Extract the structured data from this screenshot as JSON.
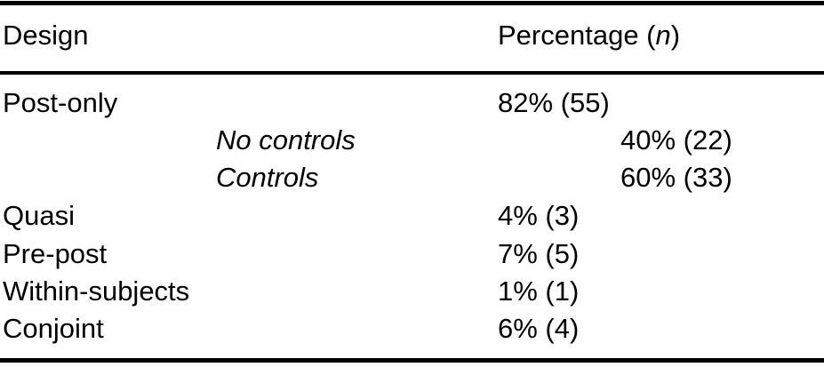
{
  "page": {
    "background_color": "#ffffff",
    "text_color": "#000000"
  },
  "table": {
    "header": {
      "design_label": "Design",
      "percentage_prefix": "Percentage (",
      "percentage_n": "n",
      "percentage_suffix": ")"
    },
    "rows": [
      {
        "label": "Post-only",
        "value": "82% (55)",
        "indented": false
      },
      {
        "label": "No controls",
        "value": "40% (22)",
        "indented": true
      },
      {
        "label": "Controls",
        "value": "60% (33)",
        "indented": true
      },
      {
        "label": "Quasi",
        "value": "4% (3)",
        "indented": false
      },
      {
        "label": "Pre-post",
        "value": "7% (5)",
        "indented": false
      },
      {
        "label": "Within-subjects",
        "value": "1% (1)",
        "indented": false
      },
      {
        "label": "Conjoint",
        "value": "6% (4)",
        "indented": false
      }
    ]
  },
  "chart_data": {
    "type": "table",
    "columns": [
      "Design",
      "Percentage (n)"
    ],
    "rows": [
      {
        "design": "Post-only",
        "percentage": 82,
        "n": 55,
        "level": 0
      },
      {
        "design": "No controls",
        "percentage": 40,
        "n": 22,
        "level": 1
      },
      {
        "design": "Controls",
        "percentage": 60,
        "n": 33,
        "level": 1
      },
      {
        "design": "Quasi",
        "percentage": 4,
        "n": 3,
        "level": 0
      },
      {
        "design": "Pre-post",
        "percentage": 7,
        "n": 5,
        "level": 0
      },
      {
        "design": "Within-subjects",
        "percentage": 1,
        "n": 1,
        "level": 0
      },
      {
        "design": "Conjoint",
        "percentage": 6,
        "n": 4,
        "level": 0
      }
    ]
  }
}
